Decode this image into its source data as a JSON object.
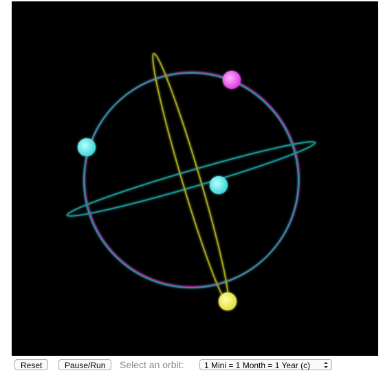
{
  "controls": {
    "reset": "Reset",
    "pause": "Pause/Run",
    "select_label": "Select an orbit:",
    "select_value": "1 Mini = 1 Month = 1 Year (c)"
  }
}
